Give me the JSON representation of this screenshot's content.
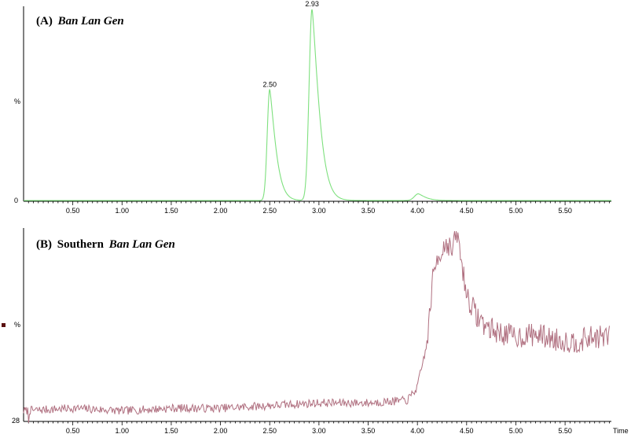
{
  "chart_data": [
    {
      "type": "line",
      "title_prefix": "(A)",
      "title_italic": "Ban Lan Gen",
      "ylabel": "%",
      "y_bottom_label": "0",
      "xlim": [
        0.0,
        5.97
      ],
      "ylim": [
        0,
        100
      ],
      "x_ticks": [
        "0.50",
        "1.00",
        "1.50",
        "2.00",
        "2.50",
        "3.00",
        "3.50",
        "4.00",
        "4.50",
        "5.00",
        "5.50"
      ],
      "line_color": "#7ee07e",
      "peaks": [
        {
          "x": 2.5,
          "y": 58,
          "label": "2.50",
          "sigma_left": 0.025,
          "sigma_right": 0.06
        },
        {
          "x": 2.93,
          "y": 100,
          "label": "2.93",
          "sigma_left": 0.03,
          "sigma_right": 0.07
        },
        {
          "x": 4.01,
          "y": 3.5,
          "label": "",
          "sigma_left": 0.04,
          "sigma_right": 0.07
        }
      ],
      "baseline": 0.4
    },
    {
      "type": "line",
      "title_prefix": "(B)",
      "title_plain": "Southern",
      "title_italic": "Ban Lan Gen",
      "ylabel": "%",
      "y_bottom_label": "28",
      "xlabel": "Time",
      "xlim": [
        0.0,
        5.97
      ],
      "ylim": [
        28,
        100
      ],
      "x_ticks": [
        "0.50",
        "1.00",
        "1.50",
        "2.00",
        "2.50",
        "3.00",
        "3.50",
        "4.00",
        "4.50",
        "5.00",
        "5.50"
      ],
      "line_color": "#b07080",
      "marker_color": "#5a1010",
      "x": [
        0.0,
        0.5,
        1.0,
        1.5,
        2.0,
        2.5,
        3.0,
        3.5,
        3.9,
        4.0,
        4.1,
        4.15,
        4.2,
        4.3,
        4.35,
        4.4,
        4.45,
        4.5,
        4.6,
        4.7,
        4.8,
        5.0,
        5.2,
        5.4,
        5.6,
        5.8,
        5.95
      ],
      "y": [
        32,
        33,
        32,
        33,
        33,
        34,
        35,
        35,
        36,
        41,
        58,
        80,
        90,
        96,
        92,
        100,
        88,
        76,
        68,
        64,
        62,
        60,
        61,
        59,
        58,
        60,
        60
      ]
    }
  ]
}
